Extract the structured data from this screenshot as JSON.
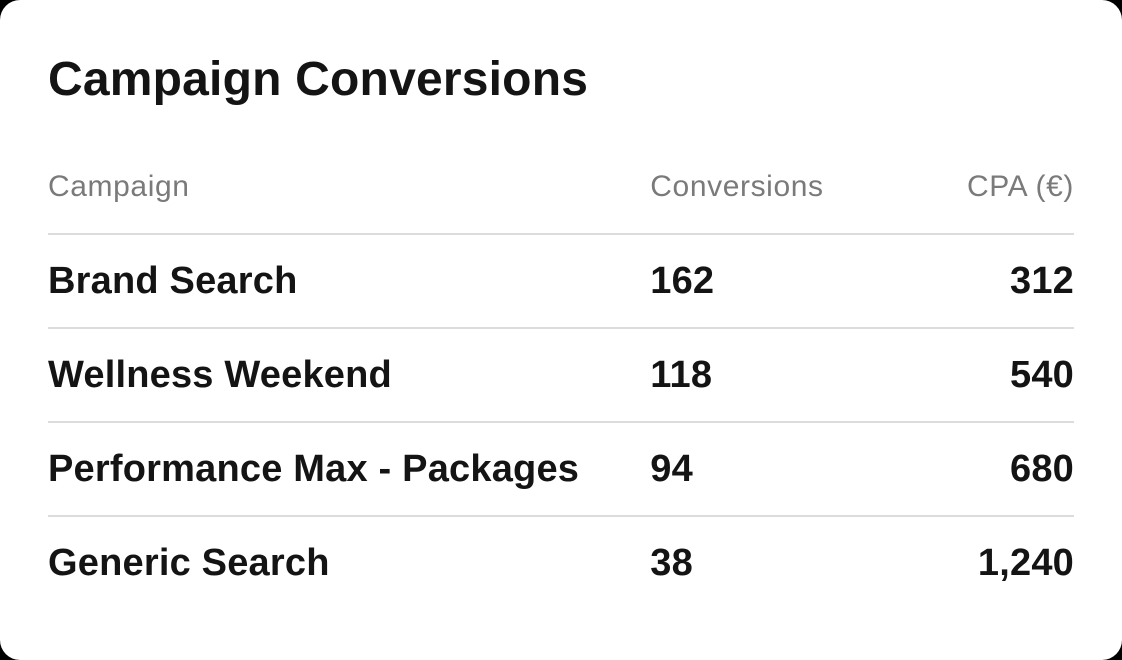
{
  "card": {
    "title": "Campaign Conversions",
    "table": {
      "columns": [
        {
          "id": "campaign",
          "label": "Campaign",
          "align": "left"
        },
        {
          "id": "conversions",
          "label": "Conversions",
          "align": "left"
        },
        {
          "id": "cpa",
          "label": "CPA (€)",
          "align": "right"
        }
      ],
      "rows": [
        {
          "campaign": "Brand Search",
          "conversions": "162",
          "cpa": "312"
        },
        {
          "campaign": "Wellness Weekend",
          "conversions": "118",
          "cpa": "540"
        },
        {
          "campaign": "Performance Max - Packages",
          "conversions": "94",
          "cpa": "680"
        },
        {
          "campaign": "Generic Search",
          "conversions": "38",
          "cpa": "1,240"
        }
      ]
    },
    "colors": {
      "page_bg": "#000000",
      "card_bg": "#ffffff",
      "title_text": "#141414",
      "header_text": "#7a7a7a",
      "row_text": "#141414",
      "divider": "#dcdcdc"
    }
  }
}
